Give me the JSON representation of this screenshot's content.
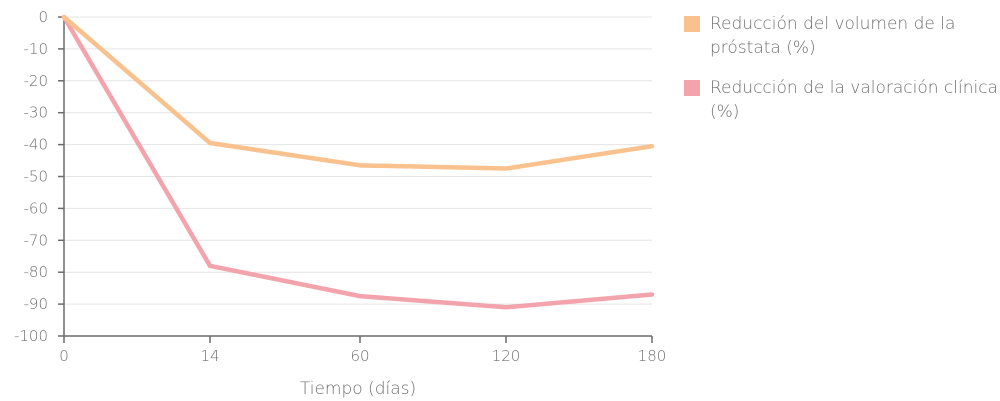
{
  "chart_data": {
    "type": "line",
    "x": [
      0,
      14,
      60,
      120,
      180
    ],
    "x_tick_labels": [
      "0",
      "14",
      "60",
      "120",
      "180"
    ],
    "xlabel": "Tiempo (días)",
    "ylabel": "",
    "ylim": [
      -100,
      0
    ],
    "yticks": [
      0,
      -10,
      -20,
      -30,
      -40,
      -50,
      -60,
      -70,
      -80,
      -90,
      -100
    ],
    "y_tick_labels": [
      "0",
      "-10",
      "-20",
      "-30",
      "-40",
      "-50",
      "-60",
      "-70",
      "-80",
      "-90",
      "-100"
    ],
    "grid": true,
    "legend_position": "top-right",
    "series": [
      {
        "name": "Reducción del volumen de la próstata (%)",
        "color": "#f8c18d",
        "values": [
          0,
          -39.5,
          -46.5,
          -47.5,
          -40.5
        ]
      },
      {
        "name": "Reducción de la valoración clínica (%)",
        "color": "#f2a3ab",
        "values": [
          0,
          -78,
          -87.5,
          -91,
          -87
        ]
      }
    ]
  }
}
